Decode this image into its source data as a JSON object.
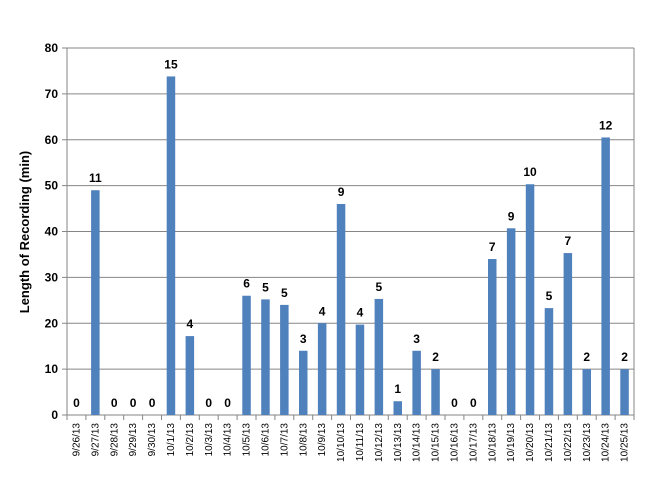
{
  "chart_data": {
    "type": "bar",
    "title": "",
    "xlabel": "",
    "ylabel": "Length of Recording (min)",
    "ylim": [
      0,
      80
    ],
    "yticks": [
      0,
      10,
      20,
      30,
      40,
      50,
      60,
      70,
      80
    ],
    "grid": "horizontal",
    "legend": "none",
    "bar_color": "#4F81BD",
    "categories": [
      "9/26/13",
      "9/27/13",
      "9/28/13",
      "9/29/13",
      "9/30/13",
      "10/1/13",
      "10/2/13",
      "10/3/13",
      "10/4/13",
      "10/5/13",
      "10/6/13",
      "10/7/13",
      "10/8/13",
      "10/9/13",
      "10/10/13",
      "10/11/13",
      "10/12/13",
      "10/13/13",
      "10/14/13",
      "10/15/13",
      "10/16/13",
      "10/17/13",
      "10/18/13",
      "10/19/13",
      "10/20/13",
      "10/21/13",
      "10/22/13",
      "10/23/13",
      "10/24/13",
      "10/25/13"
    ],
    "values": [
      0,
      49,
      0,
      0,
      0,
      73.8,
      17.2,
      0,
      0,
      26,
      25.2,
      24,
      14,
      20,
      46,
      19.7,
      25.3,
      3,
      14,
      10,
      0,
      0,
      34,
      40.7,
      50.3,
      23.3,
      35.3,
      10,
      60.5,
      10
    ],
    "data_labels": [
      "0",
      "11",
      "0",
      "0",
      "0",
      "15",
      "4",
      "0",
      "0",
      "6",
      "5",
      "5",
      "3",
      "4",
      "9",
      "4",
      "5",
      "1",
      "3",
      "2",
      "0",
      "0",
      "7",
      "9",
      "10",
      "5",
      "7",
      "2",
      "12",
      "2"
    ]
  }
}
